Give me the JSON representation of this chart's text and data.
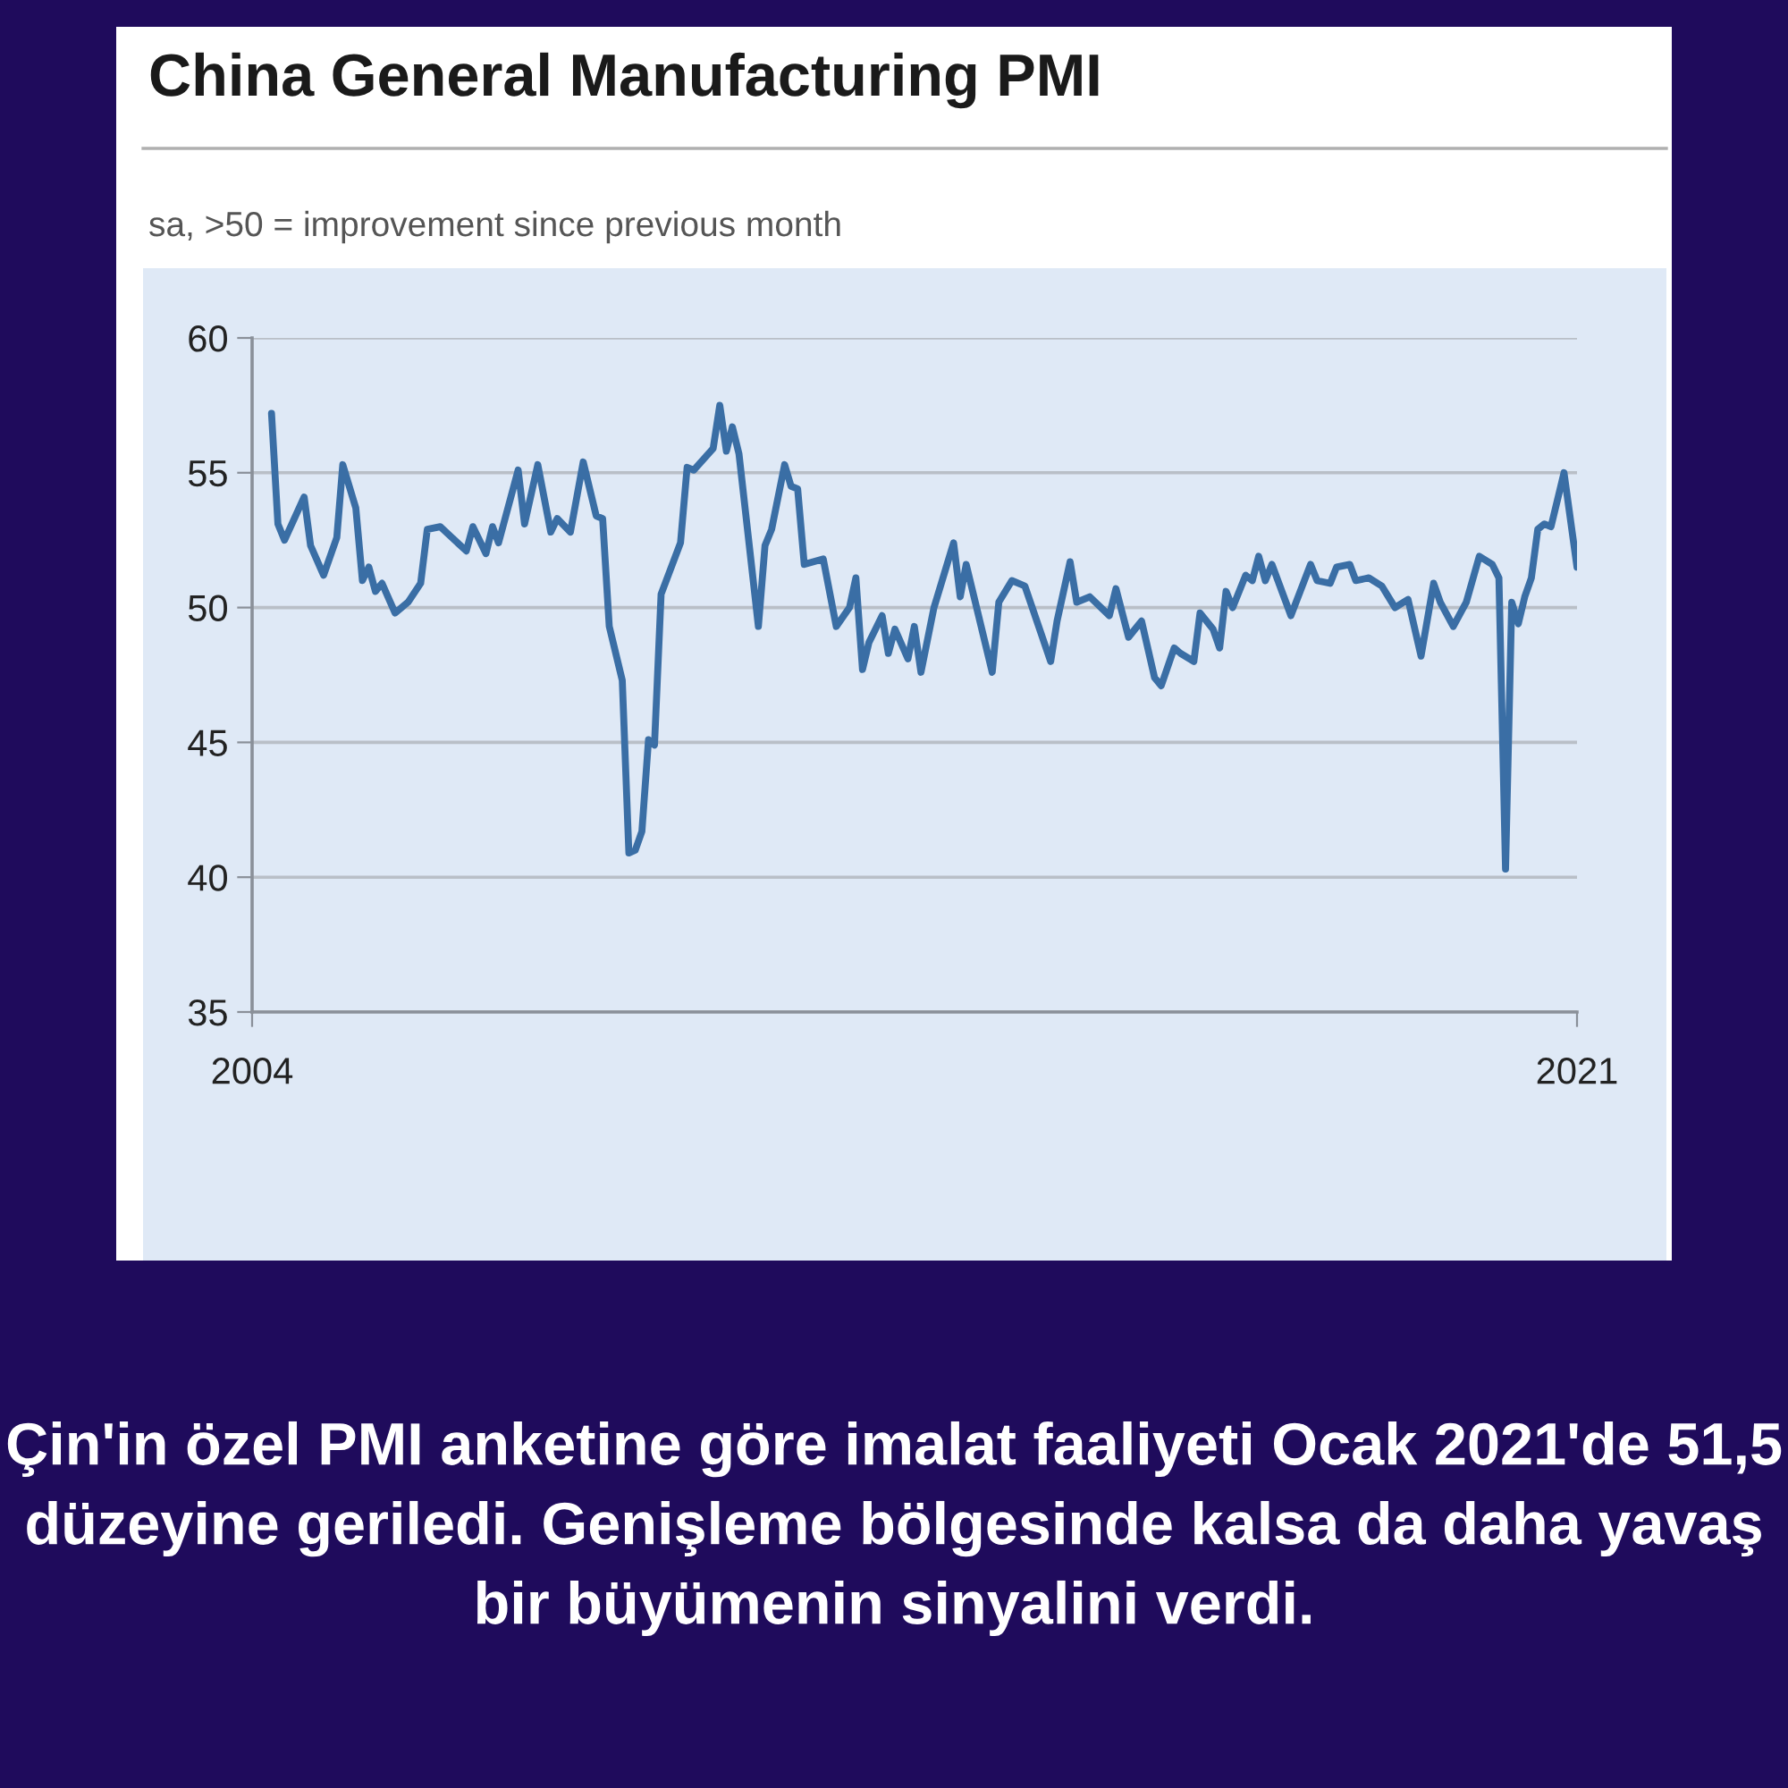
{
  "chart_data": {
    "type": "line",
    "title": "China General Manufacturing PMI",
    "subtitle": "sa, >50 = improvement since previous month",
    "annotations": [
      "Çin'in özel PMI anketine göre imalat faaliyeti Ocak 2021'de 51,5 düzeyine geriledi. Genişleme bölgesinde kalsa da daha yavaş bir büyümenin sinyalini verdi."
    ],
    "x": [
      "2004-04",
      "2004-05",
      "2004-06",
      "2004-09",
      "2004-10",
      "2004-12",
      "2005-02",
      "2005-03",
      "2005-05",
      "2005-06",
      "2005-07",
      "2005-08",
      "2005-09",
      "2005-11",
      "2006-01",
      "2006-03",
      "2006-04",
      "2006-06",
      "2006-10",
      "2006-11",
      "2007-01",
      "2007-02",
      "2007-03",
      "2007-06",
      "2007-07",
      "2007-09",
      "2007-11",
      "2007-12",
      "2008-02",
      "2008-04",
      "2008-06",
      "2008-07",
      "2008-08",
      "2008-10",
      "2008-11",
      "2008-12",
      "2009-01",
      "2009-02",
      "2009-03",
      "2009-04",
      "2009-07",
      "2009-08",
      "2009-09",
      "2009-12",
      "2010-01",
      "2010-02",
      "2010-03",
      "2010-04",
      "2010-07",
      "2010-08",
      "2010-09",
      "2010-11",
      "2010-12",
      "2011-01",
      "2011-02",
      "2011-05",
      "2011-07",
      "2011-09",
      "2011-10",
      "2011-11",
      "2011-12",
      "2012-02",
      "2012-03",
      "2012-04",
      "2012-06",
      "2012-07",
      "2012-08",
      "2012-10",
      "2013-01",
      "2013-02",
      "2013-03",
      "2013-07",
      "2013-08",
      "2013-10",
      "2013-12",
      "2014-04",
      "2014-05",
      "2014-07",
      "2014-08",
      "2014-10",
      "2015-01",
      "2015-02",
      "2015-04",
      "2015-06",
      "2015-08",
      "2015-09",
      "2015-11",
      "2015-12",
      "2016-02",
      "2016-03",
      "2016-05",
      "2016-06",
      "2016-07",
      "2016-08",
      "2016-10",
      "2016-11",
      "2016-12",
      "2017-01",
      "2017-02",
      "2017-05",
      "2017-08",
      "2017-09",
      "2017-11",
      "2017-12",
      "2018-02",
      "2018-03",
      "2018-05",
      "2018-07",
      "2018-09",
      "2018-11",
      "2019-01",
      "2019-03",
      "2019-04",
      "2019-06",
      "2019-08",
      "2019-10",
      "2019-12",
      "2020-01",
      "2020-02",
      "2020-03",
      "2020-04",
      "2020-05",
      "2020-06",
      "2020-07",
      "2020-08",
      "2020-09",
      "2020-11",
      "2021-01"
    ],
    "series": [
      {
        "color": "#3a6ea5",
        "values": [
          57.2,
          53.1,
          52.5,
          54.1,
          52.3,
          51.2,
          52.6,
          55.3,
          53.7,
          51.0,
          51.5,
          50.6,
          50.9,
          49.8,
          50.2,
          50.9,
          52.9,
          53.0,
          52.1,
          53.0,
          52.0,
          53.0,
          52.4,
          55.1,
          53.1,
          55.3,
          52.8,
          53.3,
          52.8,
          55.4,
          53.4,
          53.3,
          49.3,
          47.3,
          40.9,
          41.0,
          41.7,
          45.1,
          44.9,
          50.5,
          52.4,
          55.2,
          55.1,
          55.9,
          57.5,
          55.8,
          56.7,
          55.7,
          49.3,
          52.3,
          52.9,
          55.3,
          54.5,
          54.4,
          51.6,
          51.8,
          49.3,
          50.0,
          51.1,
          47.7,
          48.7,
          49.7,
          48.3,
          49.2,
          48.1,
          49.3,
          47.6,
          50.0,
          52.4,
          50.4,
          51.6,
          47.6,
          50.2,
          51.0,
          50.8,
          48.0,
          49.5,
          51.7,
          50.2,
          50.4,
          49.7,
          50.7,
          48.9,
          49.5,
          47.4,
          47.1,
          48.5,
          48.3,
          48.0,
          49.8,
          49.2,
          48.5,
          50.6,
          50.0,
          51.2,
          51.0,
          51.9,
          51.0,
          51.6,
          49.7,
          51.6,
          51.0,
          50.9,
          51.5,
          51.6,
          51.0,
          51.1,
          50.8,
          50.0,
          50.3,
          48.2,
          50.9,
          50.2,
          49.3,
          50.2,
          51.9,
          51.6,
          51.1,
          40.3,
          50.2,
          49.4,
          50.4,
          51.1,
          52.9,
          53.1,
          53.0,
          55.0,
          51.5
        ]
      }
    ],
    "xlim": [
      "2004",
      "2021"
    ],
    "xticks": [
      "2004",
      "2021"
    ],
    "ylim": [
      35,
      60
    ],
    "yticks": [
      35,
      40,
      45,
      50,
      55,
      60
    ],
    "grid": "y",
    "legend": false,
    "marker": "none",
    "line_style": "solid"
  }
}
